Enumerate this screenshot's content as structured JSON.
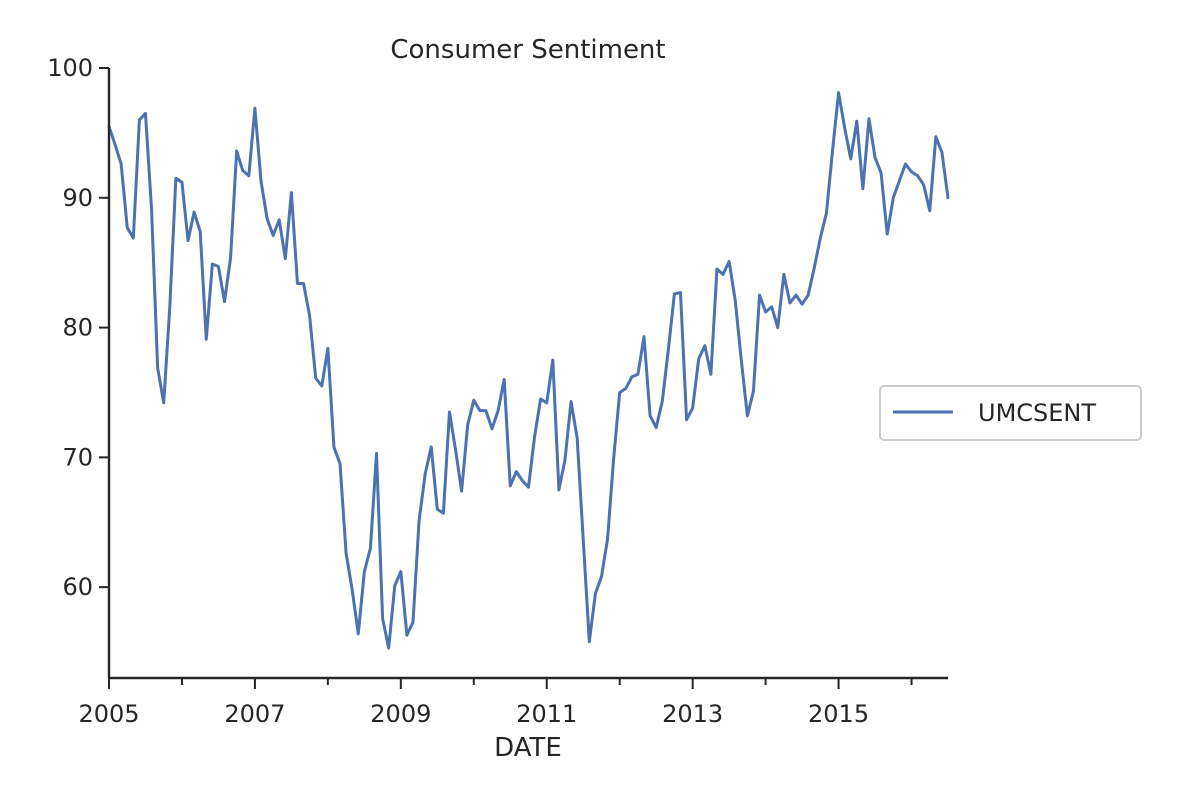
{
  "chart_data": {
    "type": "line",
    "title": "Consumer Sentiment",
    "xlabel": "DATE",
    "ylabel": "",
    "xlim": [
      2005.0,
      2016.5
    ],
    "ylim": [
      53.0,
      100.0
    ],
    "x_ticks_major": [
      2005,
      2007,
      2009,
      2011,
      2013,
      2015
    ],
    "x_tick_labels": [
      "2005",
      "2007",
      "2009",
      "2011",
      "2013",
      "2015"
    ],
    "x_ticks_minor": [
      2006,
      2008,
      2010,
      2012,
      2014,
      2016
    ],
    "y_ticks": [
      60,
      70,
      80,
      90,
      100
    ],
    "y_tick_labels": [
      "60",
      "70",
      "80",
      "90",
      "100"
    ],
    "legend": {
      "position": "center-right",
      "entries": [
        "UMCSENT"
      ]
    },
    "series": [
      {
        "name": "UMCSENT",
        "color": "#4c72b0",
        "start": "2005-01",
        "frequency": "monthly",
        "values": [
          95.5,
          94.1,
          92.6,
          87.7,
          86.9,
          96.0,
          96.5,
          89.1,
          76.9,
          74.2,
          81.6,
          91.5,
          91.2,
          86.7,
          88.9,
          87.4,
          79.1,
          84.9,
          84.7,
          82.0,
          85.4,
          93.6,
          92.1,
          91.7,
          96.9,
          91.3,
          88.4,
          87.1,
          88.3,
          85.3,
          90.4,
          83.4,
          83.4,
          80.9,
          76.1,
          75.5,
          78.4,
          70.8,
          69.5,
          62.6,
          59.8,
          56.4,
          61.2,
          63.0,
          70.3,
          57.6,
          55.3,
          60.1,
          61.2,
          56.3,
          57.3,
          65.1,
          68.7,
          70.8,
          66.0,
          65.7,
          73.5,
          70.6,
          67.4,
          72.5,
          74.4,
          73.6,
          73.6,
          72.2,
          73.6,
          76.0,
          67.8,
          68.9,
          68.2,
          67.7,
          71.6,
          74.5,
          74.2,
          77.5,
          67.5,
          69.8,
          74.3,
          71.5,
          63.7,
          55.8,
          59.5,
          60.8,
          63.7,
          69.9,
          75.0,
          75.3,
          76.2,
          76.4,
          79.3,
          73.2,
          72.3,
          74.3,
          78.3,
          82.6,
          82.7,
          72.9,
          73.8,
          77.6,
          78.6,
          76.4,
          84.5,
          84.1,
          85.1,
          82.1,
          77.5,
          73.2,
          75.1,
          82.5,
          81.2,
          81.6,
          80.0,
          84.1,
          81.9,
          82.5,
          81.8,
          82.5,
          84.6,
          86.9,
          88.8,
          93.6,
          98.1,
          95.4,
          93.0,
          95.9,
          90.7,
          96.1,
          93.1,
          91.9,
          87.2,
          90.0,
          91.3,
          92.6,
          92.0,
          91.7,
          91.0,
          89.0,
          94.7,
          93.5,
          90.0
        ]
      }
    ]
  }
}
